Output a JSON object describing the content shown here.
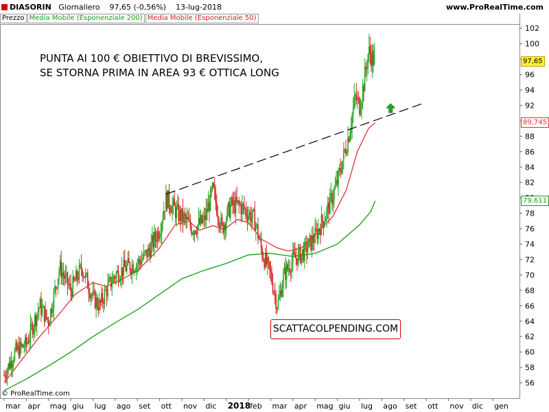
{
  "header": {
    "symbol": "DIASORIN",
    "period": "Giornaliero",
    "last": "97,65 (-0,56%)",
    "date": "13-lug-2018",
    "site": "www.ProRealTime.com"
  },
  "legend": {
    "price": "Prezzo",
    "ema200": "Media Mobile (Esponenziale 200)",
    "ema50": "Media Mobile (Esponenziale 50)"
  },
  "annotation": {
    "line1": "PUNTA AI 100 € OBIETTIVO DI BREVISSIMO,",
    "line2": "SE STORNA PRIMA IN AREA 93 € OTTICA LONG",
    "stamp": "SCATTACOLPENDING.COM"
  },
  "credit": "© ProRealTime.com",
  "colors": {
    "up": "#21a821",
    "down": "#d42424",
    "ema50": "#e03030",
    "ema200": "#129a12",
    "trendline": "#000000",
    "arrow": "#22aa22"
  },
  "chart_data": {
    "type": "candlestick",
    "ylim": [
      54,
      103
    ],
    "y_ticks": [
      56,
      58,
      60,
      62,
      64,
      66,
      68,
      70,
      72,
      74,
      76,
      78,
      80,
      82,
      84,
      86,
      88,
      90,
      92,
      94,
      96,
      98,
      100,
      102
    ],
    "x_ticks": [
      {
        "label": "mar",
        "month": 0
      },
      {
        "label": "apr",
        "month": 1
      },
      {
        "label": "mag",
        "month": 2
      },
      {
        "label": "giu",
        "month": 3
      },
      {
        "label": "lug",
        "month": 4
      },
      {
        "label": "ago",
        "month": 5
      },
      {
        "label": "set",
        "month": 6
      },
      {
        "label": "ott",
        "month": 7
      },
      {
        "label": "nov",
        "month": 8
      },
      {
        "label": "dic",
        "month": 9
      },
      {
        "label": "2018",
        "month": 10,
        "year": true
      },
      {
        "label": "feb",
        "month": 11
      },
      {
        "label": "mar",
        "month": 12
      },
      {
        "label": "apr",
        "month": 13
      },
      {
        "label": "mag",
        "month": 14
      },
      {
        "label": "giu",
        "month": 15
      },
      {
        "label": "lug",
        "month": 16
      },
      {
        "label": "ago",
        "month": 17
      },
      {
        "label": "set",
        "month": 18
      },
      {
        "label": "ott",
        "month": 19
      },
      {
        "label": "nov",
        "month": 20
      },
      {
        "label": "dic",
        "month": 21
      },
      {
        "label": "gen",
        "month": 22
      }
    ],
    "price_path": [
      [
        0,
        57
      ],
      [
        0.5,
        60
      ],
      [
        1,
        61
      ],
      [
        1.6,
        66
      ],
      [
        2,
        64
      ],
      [
        2.5,
        71
      ],
      [
        3,
        68
      ],
      [
        3.5,
        71
      ],
      [
        4,
        67
      ],
      [
        4.3,
        66
      ],
      [
        4.6,
        68
      ],
      [
        5,
        70
      ],
      [
        5.5,
        71
      ],
      [
        6,
        71.5
      ],
      [
        6.5,
        73
      ],
      [
        7,
        76
      ],
      [
        7.3,
        80
      ],
      [
        7.8,
        78
      ],
      [
        8.2,
        77
      ],
      [
        8.5,
        76
      ],
      [
        9,
        77
      ],
      [
        9.4,
        81
      ],
      [
        9.8,
        76
      ],
      [
        10.2,
        79
      ],
      [
        10.6,
        79
      ],
      [
        11,
        78
      ],
      [
        11.3,
        77
      ],
      [
        11.6,
        73
      ],
      [
        12,
        70
      ],
      [
        12.3,
        66
      ],
      [
        12.6,
        70
      ],
      [
        13,
        72
      ],
      [
        13.5,
        73
      ],
      [
        14,
        75
      ],
      [
        14.5,
        78
      ],
      [
        15,
        82
      ],
      [
        15.5,
        88
      ],
      [
        15.8,
        93
      ],
      [
        16,
        92
      ],
      [
        16.2,
        95
      ],
      [
        16.4,
        99
      ],
      [
        16.7,
        97.65
      ]
    ],
    "series": [
      {
        "name": "Media Mobile (Esponenziale 200)",
        "last": "79,611",
        "values": [
          [
            0,
            55
          ],
          [
            1,
            56.5
          ],
          [
            2,
            58.2
          ],
          [
            3,
            60
          ],
          [
            4,
            62
          ],
          [
            5,
            63.8
          ],
          [
            6,
            65.5
          ],
          [
            7,
            67.5
          ],
          [
            8,
            69.5
          ],
          [
            9,
            70.6
          ],
          [
            10,
            71.5
          ],
          [
            11,
            72.6
          ],
          [
            12,
            72.8
          ],
          [
            13,
            72.4
          ],
          [
            14,
            72.8
          ],
          [
            15,
            74
          ],
          [
            16,
            76.5
          ],
          [
            16.5,
            78.2
          ],
          [
            16.7,
            79.611
          ]
        ]
      },
      {
        "name": "Media Mobile (Esponenziale 50)",
        "last": "89,745",
        "values": [
          [
            0,
            56
          ],
          [
            0.8,
            59
          ],
          [
            1.6,
            62
          ],
          [
            2.5,
            65
          ],
          [
            3.2,
            67.5
          ],
          [
            4,
            69
          ],
          [
            4.6,
            68.5
          ],
          [
            5.2,
            69.3
          ],
          [
            6,
            70.5
          ],
          [
            7,
            73.5
          ],
          [
            7.7,
            76.5
          ],
          [
            8.3,
            77
          ],
          [
            8.8,
            75.8
          ],
          [
            9.4,
            76.4
          ],
          [
            9.9,
            75.9
          ],
          [
            10.5,
            77.2
          ],
          [
            11,
            76.8
          ],
          [
            11.6,
            74.6
          ],
          [
            12.3,
            73.5
          ],
          [
            12.8,
            73.1
          ],
          [
            13.4,
            73.5
          ],
          [
            14.1,
            75.5
          ],
          [
            14.8,
            77.6
          ],
          [
            15.4,
            81
          ],
          [
            15.9,
            86
          ],
          [
            16.4,
            89
          ],
          [
            16.7,
            89.745
          ]
        ]
      }
    ],
    "last_price": "97,65",
    "trendline": {
      "from": [
        7.3,
        80.5
      ],
      "to": [
        18.8,
        92.2
      ]
    },
    "arrow_at": [
      17.4,
      91.5
    ]
  }
}
